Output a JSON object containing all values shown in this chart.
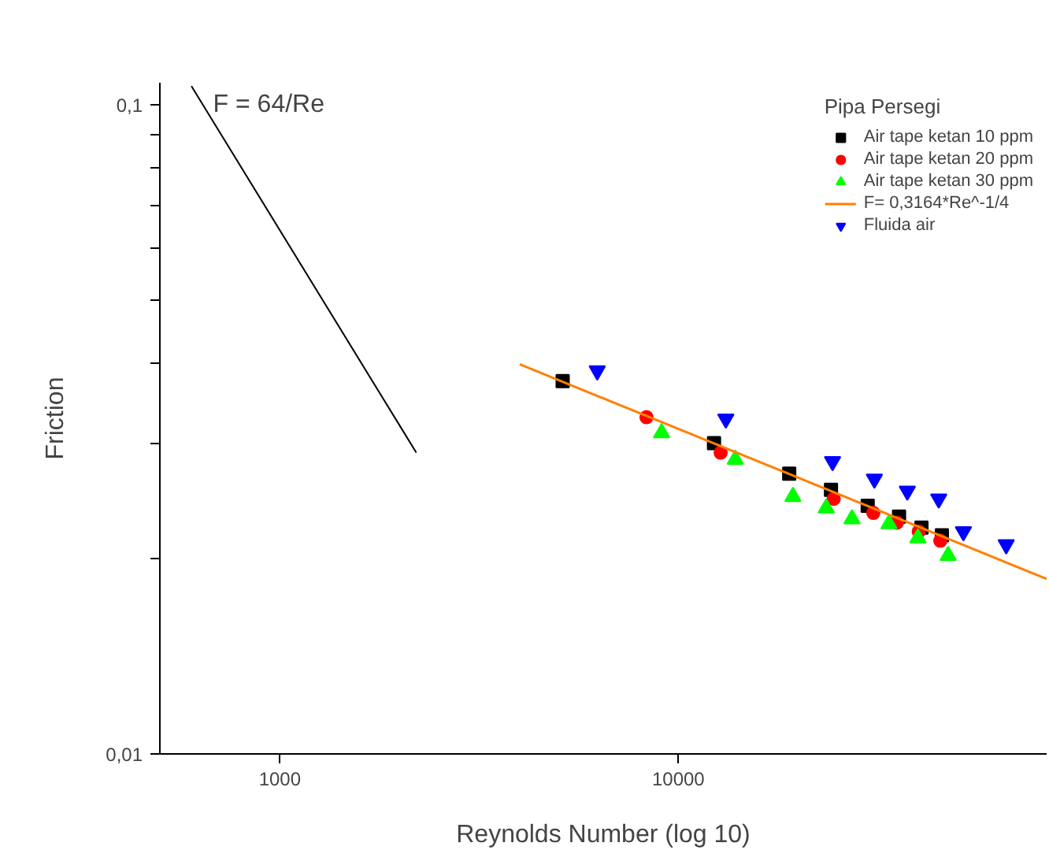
{
  "chart_data": {
    "type": "scatter",
    "xlabel": "Reynolds Number (log 10)",
    "ylabel": "Friction",
    "legend_title": "Pipa Persegi",
    "log": "xy",
    "grid": false,
    "legend": "top right",
    "xlim": [
      500,
      84000
    ],
    "ylim": [
      0.01,
      0.108
    ],
    "xticks": [
      1000,
      10000
    ],
    "yticks": [
      {
        "value": 0.01,
        "label": "0,01"
      },
      {
        "value": 0.02,
        "label": null
      },
      {
        "value": 0.03,
        "label": null
      },
      {
        "value": 0.04,
        "label": null
      },
      {
        "value": 0.05,
        "label": null
      },
      {
        "value": 0.06,
        "label": null
      },
      {
        "value": 0.07,
        "label": null
      },
      {
        "value": 0.08,
        "label": null
      },
      {
        "value": 0.09,
        "label": null
      },
      {
        "value": 0.1,
        "label": "0,1"
      }
    ],
    "annotations": [
      {
        "text": "F = 64/Re",
        "x": 680,
        "y": 0.1
      }
    ],
    "series": [
      {
        "name": "Air tape ketan 10 ppm",
        "marker": "square",
        "color": "#000000",
        "x": [
          5126,
          12290,
          18980,
          24160,
          29870,
          35800,
          40750,
          45850
        ],
        "values": [
          0.0375,
          0.0301,
          0.027,
          0.0255,
          0.0241,
          0.0232,
          0.0223,
          0.0217
        ]
      },
      {
        "name": "Air tape ketan 20 ppm",
        "marker": "circle",
        "color": "#ff0000",
        "x": [
          8320,
          12770,
          24540,
          30860,
          35350,
          40130,
          45450
        ],
        "values": [
          0.033,
          0.0291,
          0.0247,
          0.0235,
          0.0227,
          0.022,
          0.0213
        ]
      },
      {
        "name": "Air tape ketan 30 ppm",
        "marker": "triangle",
        "color": "#00ff00",
        "x": [
          9080,
          13900,
          19390,
          23510,
          27280,
          33780,
          39930,
          47550
        ],
        "values": [
          0.0312,
          0.0284,
          0.0249,
          0.0239,
          0.023,
          0.0226,
          0.0215,
          0.0202
        ]
      },
      {
        "name": "F= 0,3164*Re^-1/4",
        "type": "line",
        "marker": "none",
        "line_style": "solid",
        "color": "#ff8000",
        "x": [
          4000,
          84000
        ],
        "values": [
          0.0398,
          0.0186
        ]
      },
      {
        "name": "Fluida air",
        "marker": "triangle_down",
        "color": "#0000ff",
        "x": [
          6260,
          13160,
          24380,
          31050,
          37560,
          45030,
          51930,
          66500
        ],
        "values": [
          0.0389,
          0.0328,
          0.0282,
          0.0265,
          0.0254,
          0.0247,
          0.022,
          0.021
        ]
      },
      {
        "type": "line",
        "marker": "none",
        "line_style": "solid",
        "color": "#000000",
        "x": [
          600,
          2200
        ],
        "values": [
          0.1067,
          0.0291
        ]
      }
    ]
  }
}
